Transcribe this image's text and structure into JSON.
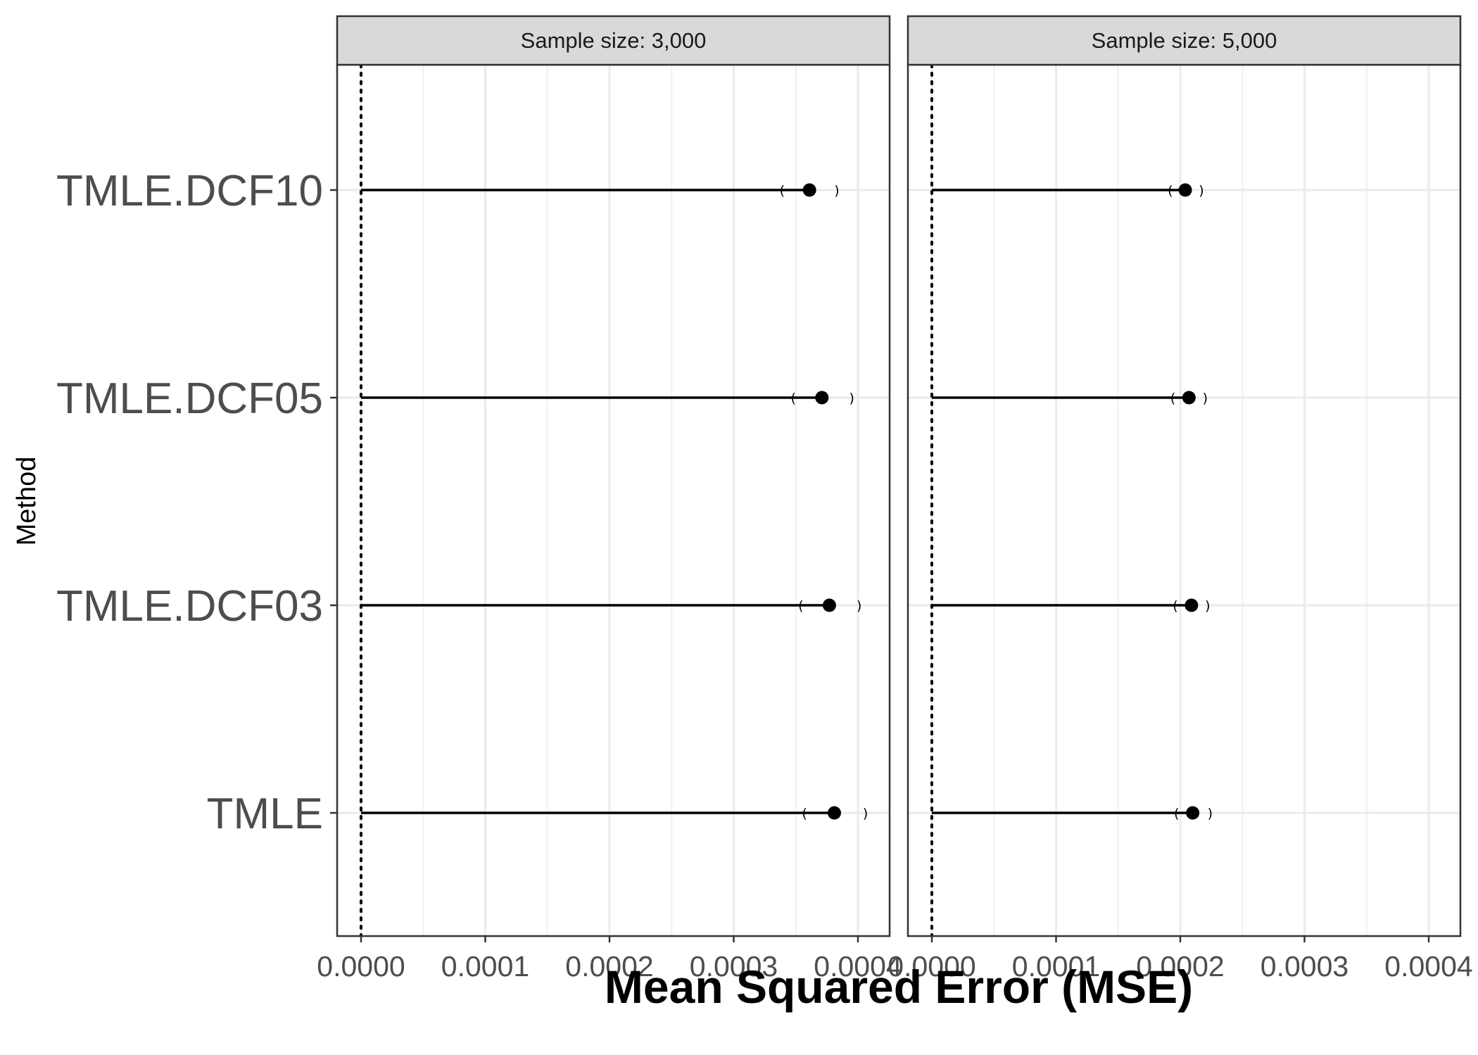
{
  "chart_data": {
    "type": "forest",
    "xlabel": "Mean Squared Error (MSE)",
    "ylabel": "Method",
    "categories": [
      "TMLE.DCF10",
      "TMLE.DCF05",
      "TMLE.DCF03",
      "TMLE"
    ],
    "xlim": [
      -2e-05,
      0.00042
    ],
    "xticks": [
      "0.0000",
      "0.0001",
      "0.0002",
      "0.0003",
      "0.0004"
    ],
    "xtick_values": [
      0,
      0.0001,
      0.0002,
      0.0003,
      0.0004
    ],
    "reference_line": 0,
    "grid": true,
    "panels": [
      {
        "title": "Sample size: 3,000",
        "points": [
          {
            "method": "TMLE.DCF10",
            "mse": 0.000361,
            "lower": 0.000339,
            "upper": 0.000383
          },
          {
            "method": "TMLE.DCF05",
            "mse": 0.000371,
            "lower": 0.000348,
            "upper": 0.000395
          },
          {
            "method": "TMLE.DCF03",
            "mse": 0.000377,
            "lower": 0.000354,
            "upper": 0.000401
          },
          {
            "method": "TMLE",
            "mse": 0.000381,
            "lower": 0.000357,
            "upper": 0.000406
          }
        ]
      },
      {
        "title": "Sample size: 5,000",
        "points": [
          {
            "method": "TMLE.DCF10",
            "mse": 0.000204,
            "lower": 0.000192,
            "upper": 0.000217
          },
          {
            "method": "TMLE.DCF05",
            "mse": 0.000207,
            "lower": 0.000194,
            "upper": 0.00022
          },
          {
            "method": "TMLE.DCF03",
            "mse": 0.000209,
            "lower": 0.000196,
            "upper": 0.000222
          },
          {
            "method": "TMLE",
            "mse": 0.00021,
            "lower": 0.000197,
            "upper": 0.000224
          }
        ]
      }
    ]
  }
}
